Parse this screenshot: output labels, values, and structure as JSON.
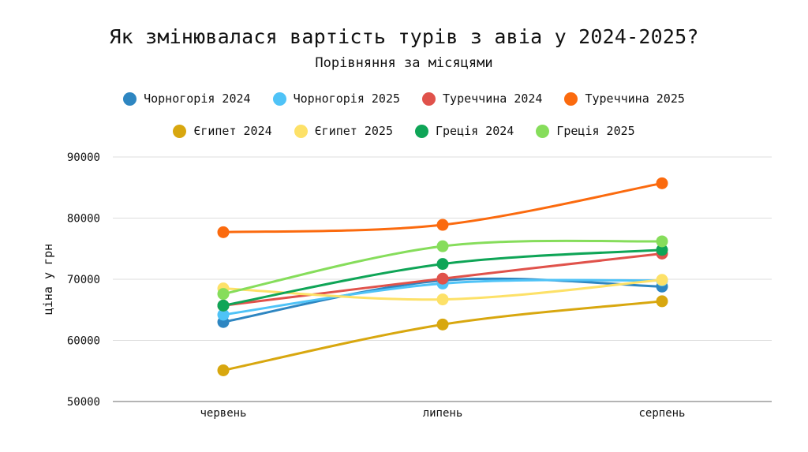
{
  "chart_data": {
    "type": "line",
    "title": "Як змінювалася вартість турів з авіа у 2024-2025?",
    "subtitle": "Порівняння за місяцями",
    "xlabel": "",
    "ylabel": "ціна у грн",
    "ylim": [
      50000,
      90000
    ],
    "yticks": [
      "50000",
      "60000",
      "70000",
      "80000",
      "90000"
    ],
    "categories": [
      "червень",
      "липень",
      "серпень"
    ],
    "grid": true,
    "legend_position": "top",
    "series": [
      {
        "name": "Чорногорія 2024",
        "color": "#2e86c1",
        "values": [
          63000,
          69800,
          68800
        ]
      },
      {
        "name": "Чорногорія 2025",
        "color": "#4fc3f7",
        "values": [
          64200,
          69300,
          69800
        ]
      },
      {
        "name": "Туреччина 2024",
        "color": "#e0524b",
        "values": [
          65700,
          70100,
          74200
        ]
      },
      {
        "name": "Туреччина 2025",
        "color": "#fb6a0e",
        "values": [
          77700,
          78900,
          85700
        ]
      },
      {
        "name": "Єгипет 2024",
        "color": "#d8a70f",
        "values": [
          55100,
          62600,
          66400
        ]
      },
      {
        "name": "Єгипет 2025",
        "color": "#fde168",
        "values": [
          68500,
          66700,
          69900
        ]
      },
      {
        "name": "Греція 2024",
        "color": "#0fa557",
        "values": [
          65700,
          72500,
          74800
        ]
      },
      {
        "name": "Греція 2025",
        "color": "#86dd5b",
        "values": [
          67600,
          75400,
          76200
        ]
      }
    ]
  }
}
